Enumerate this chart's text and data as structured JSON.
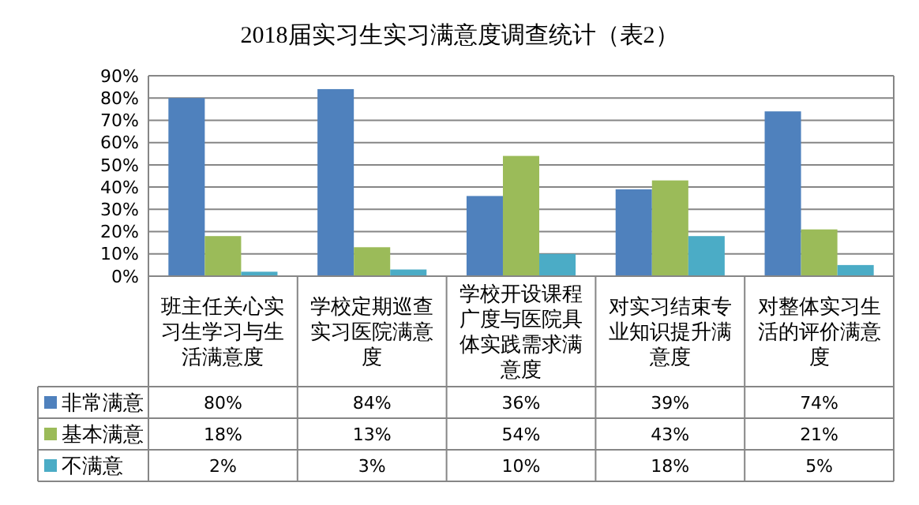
{
  "chart_data": {
    "type": "bar",
    "title": "2018届实习生实习满意度调查统计（表2）",
    "categories": [
      "班主任关心实习生学习与生活满意度",
      "学校定期巡查实习医院满意度",
      "学校开设课程广度与医院具体实践需求满意度",
      "对实习结束专业知识提升满意度",
      "对整体实习生活的评价满意度"
    ],
    "series": [
      {
        "name": "非常满意",
        "color": "#4f81bd",
        "values": [
          80,
          84,
          36,
          39,
          74
        ],
        "value_labels": [
          "80%",
          "84%",
          "36%",
          "39%",
          "74%"
        ]
      },
      {
        "name": "基本满意",
        "color": "#9bbb59",
        "values": [
          18,
          13,
          54,
          43,
          21
        ],
        "value_labels": [
          "18%",
          "13%",
          "54%",
          "43%",
          "21%"
        ]
      },
      {
        "name": "不满意",
        "color": "#4bacc6",
        "values": [
          2,
          3,
          10,
          18,
          5
        ],
        "value_labels": [
          "2%",
          "3%",
          "10%",
          "18%",
          "5%"
        ]
      }
    ],
    "ylim": [
      0,
      90
    ],
    "yticks": [
      {
        "value": 0,
        "label": "0%"
      },
      {
        "value": 10,
        "label": "10%"
      },
      {
        "value": 20,
        "label": "20%"
      },
      {
        "value": 30,
        "label": "30%"
      },
      {
        "value": 40,
        "label": "40%"
      },
      {
        "value": 50,
        "label": "50%"
      },
      {
        "value": 60,
        "label": "60%"
      },
      {
        "value": 70,
        "label": "70%"
      },
      {
        "value": 80,
        "label": "80%"
      },
      {
        "value": 90,
        "label": "90%"
      }
    ],
    "grid": "y",
    "legend": "bottom"
  }
}
